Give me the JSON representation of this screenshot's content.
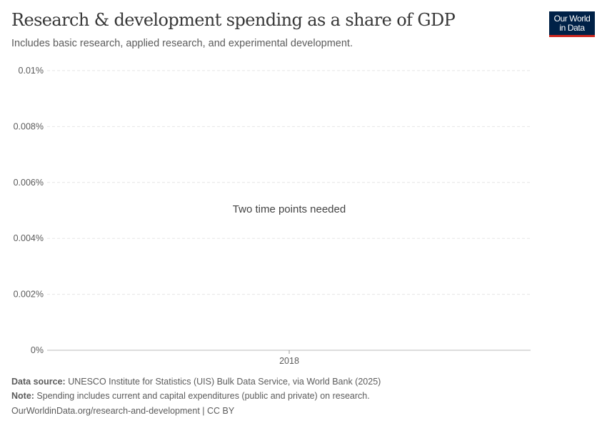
{
  "header": {
    "title": "Research & development spending as a share of GDP",
    "subtitle": "Includes basic research, applied research, and experimental development.",
    "logo_text": "Our World in Data",
    "logo_bg": "#002147",
    "logo_accent": "#ce261e"
  },
  "chart_data": {
    "type": "line",
    "title": "Research & development spending as a share of GDP",
    "ylim": [
      0,
      0.01
    ],
    "yticks": [
      0,
      0.002,
      0.004,
      0.006,
      0.008,
      0.01
    ],
    "ytick_labels": [
      "0%",
      "0.002%",
      "0.004%",
      "0.006%",
      "0.008%",
      "0.01%"
    ],
    "xticks": [
      "2018"
    ],
    "series": [],
    "grid": "horizontal dashed",
    "message": "Two time points needed"
  },
  "footer": {
    "source_label": "Data source:",
    "source_text": " UNESCO Institute for Statistics (UIS) Bulk Data Service, via World Bank (2025)",
    "note_label": "Note:",
    "note_text": " Spending includes current and capital expenditures (public and private) on research.",
    "url": "OurWorldinData.org/research-and-development | CC BY"
  }
}
